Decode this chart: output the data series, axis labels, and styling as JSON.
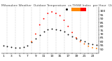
{
  "title": "Milwaukee Weather  Outdoor Temperature  vs THSW Index  per Hour  (24 Hours)",
  "hours": [
    1,
    2,
    3,
    4,
    5,
    6,
    7,
    8,
    9,
    10,
    11,
    12,
    13,
    14,
    15,
    16,
    17,
    18,
    19,
    20,
    21,
    22,
    23,
    24
  ],
  "temp": [
    55,
    54,
    53,
    52,
    52,
    53,
    55,
    59,
    64,
    69,
    73,
    76,
    77,
    76,
    75,
    73,
    70,
    67,
    64,
    62,
    60,
    58,
    57,
    56
  ],
  "thsw": [
    null,
    null,
    null,
    null,
    null,
    null,
    null,
    60,
    70,
    82,
    90,
    97,
    99,
    97,
    94,
    88,
    80,
    72,
    65,
    60,
    57,
    54,
    52,
    51
  ],
  "temp_color": "#111111",
  "ylim": [
    45,
    105
  ],
  "yticks": [
    50,
    55,
    60,
    65,
    70,
    75,
    80,
    85,
    90,
    95,
    100
  ],
  "background_color": "#ffffff",
  "grid_color": "#999999",
  "marker_size": 1.8,
  "title_fontsize": 3.2,
  "tick_fontsize": 3.2,
  "legend_orange": "#ff8800",
  "legend_red": "#ff0000"
}
